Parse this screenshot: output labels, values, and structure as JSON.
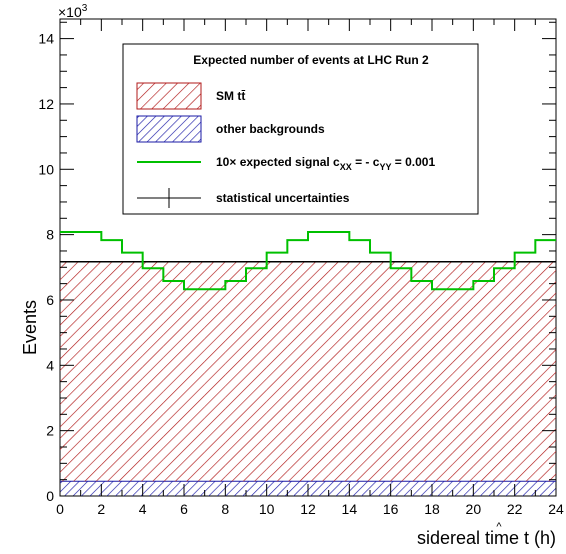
{
  "chart_data": {
    "type": "histogram",
    "xlabel_main": "sidereal time t",
    "xlabel_unit": "(h)",
    "ylabel": "Events",
    "y_multiplier_base": "×10",
    "y_multiplier_exp": "3",
    "xlim": [
      0,
      24
    ],
    "ylim": [
      0,
      14.6
    ],
    "x_ticks": [
      0,
      2,
      4,
      6,
      8,
      10,
      12,
      14,
      16,
      18,
      20,
      22,
      24
    ],
    "y_ticks": [
      0,
      2,
      4,
      6,
      8,
      10,
      12,
      14
    ],
    "bin_edges": [
      0,
      1,
      2,
      3,
      4,
      5,
      6,
      7,
      8,
      9,
      10,
      11,
      12,
      13,
      14,
      15,
      16,
      17,
      18,
      19,
      20,
      21,
      22,
      23,
      24
    ],
    "stack": [
      {
        "name": "other backgrounds",
        "color": "#1a1aa6",
        "values": [
          0.45,
          0.45,
          0.45,
          0.45,
          0.45,
          0.45,
          0.45,
          0.45,
          0.45,
          0.45,
          0.45,
          0.45,
          0.45,
          0.45,
          0.45,
          0.45,
          0.45,
          0.45,
          0.45,
          0.45,
          0.45,
          0.45,
          0.45,
          0.45
        ]
      },
      {
        "name": "SM tt̄",
        "color": "#b01818",
        "values": [
          6.72,
          6.72,
          6.72,
          6.72,
          6.72,
          6.72,
          6.72,
          6.72,
          6.72,
          6.72,
          6.72,
          6.72,
          6.72,
          6.72,
          6.72,
          6.72,
          6.72,
          6.72,
          6.72,
          6.72,
          6.72,
          6.72,
          6.72,
          6.72
        ]
      }
    ],
    "signal": {
      "name": "10× expected signal c_XX = - c_YY = 0.001",
      "color": "#00c000",
      "values": [
        8.08,
        8.08,
        7.83,
        7.45,
        6.97,
        6.58,
        6.33,
        6.33,
        6.58,
        6.97,
        7.45,
        7.83,
        8.08,
        8.08,
        7.83,
        7.45,
        6.97,
        6.58,
        6.33,
        6.33,
        6.58,
        6.97,
        7.45,
        7.83
      ]
    },
    "legend": {
      "title": "Expected number of events at LHC Run 2",
      "entries": [
        {
          "label": "SM tt̄",
          "kind": "hatch-red"
        },
        {
          "label": "other backgrounds",
          "kind": "hatch-blue"
        },
        {
          "label": "10× expected signal c",
          "sub1": "XX",
          "mid": " = - c",
          "sub2": "YY",
          "tail": " = 0.001",
          "kind": "line-green"
        },
        {
          "label": "statistical uncertainties",
          "kind": "errorbar"
        }
      ]
    }
  }
}
